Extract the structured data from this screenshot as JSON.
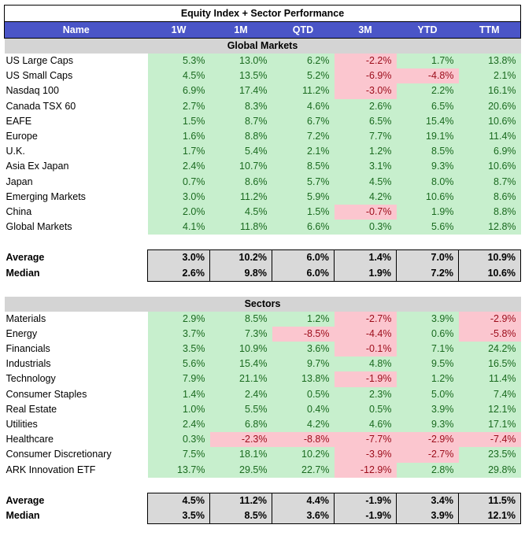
{
  "title": "Equity Index + Sector Performance",
  "columns": [
    "Name",
    "1W",
    "1M",
    "QTD",
    "3M",
    "YTD",
    "TTM"
  ],
  "sections": [
    {
      "heading": "Global Markets",
      "rows": [
        {
          "name": "US Large Caps",
          "values": [
            "5.3%",
            "13.0%",
            "6.2%",
            "-2.2%",
            "1.7%",
            "13.8%"
          ]
        },
        {
          "name": "US Small Caps",
          "values": [
            "4.5%",
            "13.5%",
            "5.2%",
            "-6.9%",
            "-4.8%",
            "2.1%"
          ]
        },
        {
          "name": "Nasdaq 100",
          "values": [
            "6.9%",
            "17.4%",
            "11.2%",
            "-3.0%",
            "2.2%",
            "16.1%"
          ]
        },
        {
          "name": "Canada TSX 60",
          "values": [
            "2.7%",
            "8.3%",
            "4.6%",
            "2.6%",
            "6.5%",
            "20.6%"
          ]
        },
        {
          "name": "EAFE",
          "values": [
            "1.5%",
            "8.7%",
            "6.7%",
            "6.5%",
            "15.4%",
            "10.6%"
          ]
        },
        {
          "name": "Europe",
          "values": [
            "1.6%",
            "8.8%",
            "7.2%",
            "7.7%",
            "19.1%",
            "11.4%"
          ]
        },
        {
          "name": "U.K.",
          "values": [
            "1.7%",
            "5.4%",
            "2.1%",
            "1.2%",
            "8.5%",
            "6.9%"
          ]
        },
        {
          "name": "Asia Ex Japan",
          "values": [
            "2.4%",
            "10.7%",
            "8.5%",
            "3.1%",
            "9.3%",
            "10.6%"
          ]
        },
        {
          "name": "Japan",
          "values": [
            "0.7%",
            "8.6%",
            "5.7%",
            "4.5%",
            "8.0%",
            "8.7%"
          ]
        },
        {
          "name": "Emerging Markets",
          "values": [
            "3.0%",
            "11.2%",
            "5.9%",
            "4.2%",
            "10.6%",
            "8.6%"
          ]
        },
        {
          "name": "China",
          "values": [
            "2.0%",
            "4.5%",
            "1.5%",
            "-0.7%",
            "1.9%",
            "8.8%"
          ]
        },
        {
          "name": "Global Markets",
          "values": [
            "4.1%",
            "11.8%",
            "6.6%",
            "0.3%",
            "5.6%",
            "12.8%"
          ]
        }
      ],
      "stats": [
        {
          "name": "Average",
          "values": [
            "3.0%",
            "10.2%",
            "6.0%",
            "1.4%",
            "7.0%",
            "10.9%"
          ]
        },
        {
          "name": "Median",
          "values": [
            "2.6%",
            "9.8%",
            "6.0%",
            "1.9%",
            "7.2%",
            "10.6%"
          ]
        }
      ]
    },
    {
      "heading": "Sectors",
      "rows": [
        {
          "name": "Materials",
          "values": [
            "2.9%",
            "8.5%",
            "1.2%",
            "-2.7%",
            "3.9%",
            "-2.9%"
          ]
        },
        {
          "name": "Energy",
          "values": [
            "3.7%",
            "7.3%",
            "-8.5%",
            "-4.4%",
            "0.6%",
            "-5.8%"
          ]
        },
        {
          "name": "Financials",
          "values": [
            "3.5%",
            "10.9%",
            "3.6%",
            "-0.1%",
            "7.1%",
            "24.2%"
          ]
        },
        {
          "name": "Industrials",
          "values": [
            "5.6%",
            "15.4%",
            "9.7%",
            "4.8%",
            "9.5%",
            "16.5%"
          ]
        },
        {
          "name": "Technology",
          "values": [
            "7.9%",
            "21.1%",
            "13.8%",
            "-1.9%",
            "1.2%",
            "11.4%"
          ]
        },
        {
          "name": "Consumer Staples",
          "values": [
            "1.4%",
            "2.4%",
            "0.5%",
            "2.3%",
            "5.0%",
            "7.4%"
          ]
        },
        {
          "name": "Real Estate",
          "values": [
            "1.0%",
            "5.5%",
            "0.4%",
            "0.5%",
            "3.9%",
            "12.1%"
          ]
        },
        {
          "name": "Utilities",
          "values": [
            "2.4%",
            "6.8%",
            "4.2%",
            "4.6%",
            "9.3%",
            "17.1%"
          ]
        },
        {
          "name": "Healthcare",
          "values": [
            "0.3%",
            "-2.3%",
            "-8.8%",
            "-7.7%",
            "-2.9%",
            "-7.4%"
          ]
        },
        {
          "name": "Consumer Discretionary",
          "values": [
            "7.5%",
            "18.1%",
            "10.2%",
            "-3.9%",
            "-2.7%",
            "23.5%"
          ]
        },
        {
          "name": "ARK Innovation ETF",
          "values": [
            "13.7%",
            "29.5%",
            "22.7%",
            "-12.9%",
            "2.8%",
            "29.8%"
          ]
        }
      ],
      "stats": [
        {
          "name": "Average",
          "values": [
            "4.5%",
            "11.2%",
            "4.4%",
            "-1.9%",
            "3.4%",
            "11.5%"
          ]
        },
        {
          "name": "Median",
          "values": [
            "3.5%",
            "8.5%",
            "3.6%",
            "-1.9%",
            "3.9%",
            "12.1%"
          ]
        }
      ]
    }
  ],
  "colors": {
    "header_bg": "#4a55c7",
    "positive_bg": "#c7efcd",
    "positive_text": "#1a6a1f",
    "negative_bg": "#fbc6cf",
    "negative_text": "#9c0c1a",
    "section_bg": "#d4d4d4",
    "stat_bg": "#d9d9d9"
  }
}
